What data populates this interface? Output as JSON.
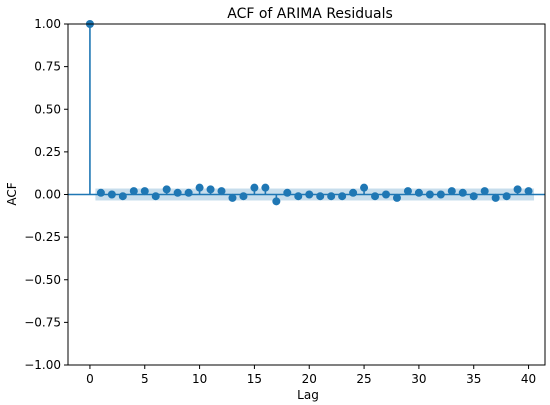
{
  "chart_data": {
    "type": "scatter",
    "title": "ACF of ARIMA Residuals",
    "xlabel": "Lag",
    "ylabel": "ACF",
    "xlim": [
      -2,
      41.5
    ],
    "ylim": [
      -1.0,
      1.0
    ],
    "xticks": [
      0,
      5,
      10,
      15,
      20,
      25,
      30,
      35,
      40
    ],
    "xtick_labels": [
      "0",
      "5",
      "10",
      "15",
      "20",
      "25",
      "30",
      "35",
      "40"
    ],
    "yticks": [
      -1.0,
      -0.75,
      -0.5,
      -0.25,
      0.0,
      0.25,
      0.5,
      0.75,
      1.0
    ],
    "ytick_labels": [
      "−1.00",
      "−0.75",
      "−0.50",
      "−0.25",
      "0.00",
      "0.25",
      "0.50",
      "0.75",
      "1.00"
    ],
    "confidence_band": [
      -0.035,
      0.035
    ],
    "grid": false,
    "colors": {
      "markers": "#1f77b4",
      "band": "#1f77b4"
    },
    "lags": [
      0,
      1,
      2,
      3,
      4,
      5,
      6,
      7,
      8,
      9,
      10,
      11,
      12,
      13,
      14,
      15,
      16,
      17,
      18,
      19,
      20,
      21,
      22,
      23,
      24,
      25,
      26,
      27,
      28,
      29,
      30,
      31,
      32,
      33,
      34,
      35,
      36,
      37,
      38,
      39,
      40
    ],
    "values": [
      1.0,
      0.01,
      0.0,
      -0.01,
      0.02,
      0.02,
      -0.01,
      0.03,
      0.01,
      0.01,
      0.04,
      0.03,
      0.02,
      -0.02,
      -0.01,
      0.04,
      0.04,
      -0.04,
      0.01,
      -0.01,
      0.0,
      -0.01,
      -0.01,
      -0.01,
      0.01,
      0.04,
      -0.01,
      0.0,
      -0.02,
      0.02,
      0.01,
      0.0,
      0.0,
      0.02,
      0.01,
      -0.01,
      0.02,
      -0.02,
      -0.01,
      0.03,
      0.02
    ]
  }
}
